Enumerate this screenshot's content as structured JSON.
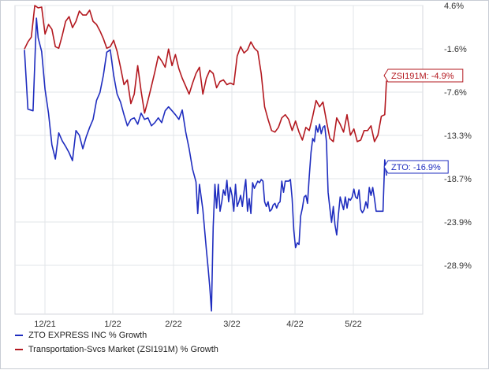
{
  "chart_data": {
    "type": "line",
    "x_ticks": [
      "12/21",
      "1/22",
      "2/22",
      "3/22",
      "4/22",
      "5/22"
    ],
    "y_ticks": [
      "4.6%",
      "-1.6%",
      "-7.6%",
      "-13.3%",
      "-18.7%",
      "-23.9%",
      "-28.9%"
    ],
    "ylim": [
      -34.4,
      4.6
    ],
    "grid": true,
    "legend_position": "bottom-left",
    "series": [
      {
        "name": "ZTO EXPRESS INC % Growth",
        "color": "#1f2dbf",
        "end_label": "ZTO: -16.9%",
        "values": [
          [
            0,
            -1.0
          ],
          [
            2,
            -8.5
          ],
          [
            5,
            -8.7
          ],
          [
            7,
            3.0
          ],
          [
            8,
            0.5
          ],
          [
            10,
            -1.2
          ],
          [
            12,
            -6.0
          ],
          [
            14,
            -9.0
          ],
          [
            16,
            -13.0
          ],
          [
            18,
            -14.8
          ],
          [
            20,
            -11.5
          ],
          [
            22,
            -12.5
          ],
          [
            24,
            -13.2
          ],
          [
            26,
            -14.0
          ],
          [
            28,
            -15.0
          ],
          [
            30,
            -11.2
          ],
          [
            32,
            -11.8
          ],
          [
            34,
            -13.5
          ],
          [
            36,
            -12.0
          ],
          [
            38,
            -10.8
          ],
          [
            40,
            -9.8
          ],
          [
            42,
            -7.4
          ],
          [
            44,
            -6.4
          ],
          [
            46,
            -4.2
          ],
          [
            48,
            -1.3
          ],
          [
            50,
            -1.0
          ],
          [
            52,
            -4.2
          ],
          [
            54,
            -6.6
          ],
          [
            56,
            -7.6
          ],
          [
            58,
            -9.2
          ],
          [
            60,
            -10.6
          ],
          [
            62,
            -9.8
          ],
          [
            64,
            -9.6
          ],
          [
            66,
            -10.4
          ],
          [
            68,
            -9.0
          ],
          [
            70,
            -9.8
          ],
          [
            72,
            -9.6
          ],
          [
            74,
            -10.6
          ],
          [
            76,
            -10.2
          ],
          [
            78,
            -9.6
          ],
          [
            80,
            -10.2
          ],
          [
            82,
            -8.7
          ],
          [
            84,
            -8.2
          ],
          [
            86,
            -8.7
          ],
          [
            88,
            -9.2
          ],
          [
            90,
            -9.8
          ],
          [
            92,
            -8.6
          ],
          [
            94,
            -11.4
          ],
          [
            96,
            -13.5
          ],
          [
            98,
            -16.1
          ],
          [
            100,
            -17.7
          ],
          [
            101,
            -21.7
          ],
          [
            102,
            -18.0
          ],
          [
            104,
            -21.2
          ],
          [
            106,
            -26.2
          ],
          [
            107,
            -28.5
          ],
          [
            108,
            -30.9
          ],
          [
            109,
            -34.0
          ],
          [
            110,
            -23.4
          ],
          [
            111,
            -18.0
          ],
          [
            112,
            -21.0
          ],
          [
            113,
            -18.0
          ],
          [
            114,
            -21.4
          ],
          [
            115,
            -20.2
          ],
          [
            116,
            -18.7
          ],
          [
            117,
            -19.4
          ],
          [
            118,
            -17.5
          ],
          [
            119,
            -20.2
          ],
          [
            120,
            -18.4
          ],
          [
            121,
            -19.4
          ],
          [
            122,
            -21.4
          ],
          [
            123,
            -18.0
          ],
          [
            124,
            -20.8
          ],
          [
            125,
            -20.2
          ],
          [
            126,
            -19.4
          ],
          [
            127,
            -20.8
          ],
          [
            128,
            -18.9
          ],
          [
            129,
            -17.4
          ],
          [
            130,
            -21.4
          ],
          [
            131,
            -19.8
          ],
          [
            132,
            -21.7
          ],
          [
            133,
            -17.8
          ],
          [
            134,
            -18.5
          ],
          [
            136,
            -17.6
          ],
          [
            137,
            -17.8
          ],
          [
            138,
            -17.4
          ],
          [
            139,
            -17.6
          ],
          [
            140,
            -20.2
          ],
          [
            141,
            -20.8
          ],
          [
            142,
            -20.2
          ],
          [
            143,
            -21.4
          ],
          [
            144,
            -21.2
          ],
          [
            145,
            -20.6
          ],
          [
            146,
            -20.4
          ],
          [
            147,
            -21.0
          ],
          [
            148,
            -20.4
          ],
          [
            149,
            -20.2
          ],
          [
            150,
            -17.6
          ],
          [
            151,
            -19.0
          ],
          [
            152,
            -17.6
          ],
          [
            154,
            -17.6
          ],
          [
            155,
            -17.4
          ],
          [
            156,
            -19.8
          ],
          [
            157,
            -23.8
          ],
          [
            158,
            -26.0
          ],
          [
            159,
            -25.4
          ],
          [
            160,
            -25.6
          ],
          [
            161,
            -22.0
          ],
          [
            162,
            -21.0
          ],
          [
            163,
            -19.6
          ],
          [
            164,
            -19.4
          ],
          [
            165,
            -20.4
          ],
          [
            166,
            -17.0
          ],
          [
            167,
            -14.0
          ],
          [
            168,
            -12.2
          ],
          [
            169,
            -12.6
          ],
          [
            170,
            -10.6
          ],
          [
            171,
            -11.4
          ],
          [
            172,
            -10.4
          ],
          [
            173,
            -11.6
          ],
          [
            174,
            -10.8
          ],
          [
            175,
            -10.6
          ],
          [
            176,
            -12.6
          ],
          [
            177,
            -19.0
          ],
          [
            178,
            -21.0
          ],
          [
            179,
            -22.8
          ],
          [
            180,
            -20.8
          ],
          [
            181,
            -23.1
          ],
          [
            182,
            -24.4
          ],
          [
            183,
            -21.8
          ],
          [
            184,
            -19.6
          ],
          [
            185,
            -20.4
          ],
          [
            186,
            -21.2
          ],
          [
            187,
            -19.6
          ],
          [
            188,
            -21.0
          ],
          [
            189,
            -19.8
          ],
          [
            190,
            -20.0
          ],
          [
            191,
            -19.6
          ],
          [
            192,
            -18.6
          ],
          [
            193,
            -19.6
          ],
          [
            194,
            -19.8
          ],
          [
            195,
            -18.7
          ],
          [
            196,
            -21.2
          ],
          [
            197,
            -21.6
          ],
          [
            198,
            -21.2
          ],
          [
            199,
            -20.2
          ],
          [
            200,
            -21.0
          ],
          [
            201,
            -18.4
          ],
          [
            202,
            -19.4
          ],
          [
            203,
            -18.4
          ],
          [
            204,
            -19.8
          ],
          [
            205,
            -21.4
          ],
          [
            206,
            -21.4
          ],
          [
            207,
            -21.4
          ],
          [
            208,
            -21.4
          ],
          [
            209,
            -21.4
          ],
          [
            210,
            -14.9
          ],
          [
            211,
            -16.9
          ]
        ]
      },
      {
        "name": "Transportation-Svcs Market (ZSI191M) % Growth",
        "color": "#b3181f",
        "end_label": "ZSI191M: -4.9%",
        "values": [
          [
            0,
            -0.9
          ],
          [
            2,
            0.0
          ],
          [
            4,
            0.6
          ],
          [
            6,
            4.6
          ],
          [
            8,
            4.3
          ],
          [
            10,
            4.4
          ],
          [
            12,
            1.0
          ],
          [
            14,
            2.2
          ],
          [
            16,
            1.6
          ],
          [
            18,
            -0.6
          ],
          [
            20,
            -0.8
          ],
          [
            22,
            0.8
          ],
          [
            24,
            2.6
          ],
          [
            26,
            3.2
          ],
          [
            28,
            1.8
          ],
          [
            30,
            2.6
          ],
          [
            32,
            3.9
          ],
          [
            34,
            3.4
          ],
          [
            36,
            3.4
          ],
          [
            38,
            4.0
          ],
          [
            40,
            2.6
          ],
          [
            42,
            2.2
          ],
          [
            44,
            1.4
          ],
          [
            46,
            0.4
          ],
          [
            48,
            -0.8
          ],
          [
            50,
            -0.6
          ],
          [
            52,
            0.2
          ],
          [
            54,
            -1.2
          ],
          [
            56,
            -3.2
          ],
          [
            58,
            -5.4
          ],
          [
            60,
            -4.8
          ],
          [
            62,
            -7.8
          ],
          [
            64,
            -6.6
          ],
          [
            66,
            -3.0
          ],
          [
            68,
            -6.2
          ],
          [
            70,
            -9.0
          ],
          [
            72,
            -7.4
          ],
          [
            74,
            -5.6
          ],
          [
            76,
            -3.8
          ],
          [
            78,
            -1.8
          ],
          [
            80,
            -2.4
          ],
          [
            82,
            -3.2
          ],
          [
            84,
            -0.9
          ],
          [
            86,
            -3.0
          ],
          [
            88,
            -1.6
          ],
          [
            90,
            -3.4
          ],
          [
            92,
            -4.6
          ],
          [
            94,
            -5.6
          ],
          [
            96,
            -6.6
          ],
          [
            98,
            -5.2
          ],
          [
            100,
            -4.0
          ],
          [
            102,
            -3.2
          ],
          [
            104,
            -6.6
          ],
          [
            106,
            -4.6
          ],
          [
            108,
            -3.6
          ],
          [
            110,
            -4.0
          ],
          [
            112,
            -5.8
          ],
          [
            114,
            -5.0
          ],
          [
            116,
            -4.8
          ],
          [
            118,
            -5.4
          ],
          [
            120,
            -5.2
          ],
          [
            122,
            -5.4
          ],
          [
            124,
            -1.8
          ],
          [
            126,
            -0.6
          ],
          [
            128,
            -1.4
          ],
          [
            130,
            -1.0
          ],
          [
            132,
            0.0
          ],
          [
            134,
            -0.8
          ],
          [
            136,
            -1.2
          ],
          [
            138,
            -4.0
          ],
          [
            140,
            -8.2
          ],
          [
            142,
            -9.8
          ],
          [
            144,
            -11.2
          ],
          [
            146,
            -11.4
          ],
          [
            148,
            -10.8
          ],
          [
            150,
            -9.6
          ],
          [
            152,
            -9.2
          ],
          [
            154,
            -9.8
          ],
          [
            156,
            -11.2
          ],
          [
            158,
            -10.0
          ],
          [
            160,
            -11.4
          ],
          [
            162,
            -12.4
          ],
          [
            164,
            -10.8
          ],
          [
            166,
            -11.2
          ],
          [
            168,
            -9.4
          ],
          [
            170,
            -7.4
          ],
          [
            172,
            -8.2
          ],
          [
            174,
            -7.6
          ],
          [
            176,
            -10.0
          ],
          [
            178,
            -12.2
          ],
          [
            180,
            -12.6
          ],
          [
            182,
            -9.6
          ],
          [
            184,
            -10.4
          ],
          [
            186,
            -11.4
          ],
          [
            188,
            -9.2
          ],
          [
            190,
            -11.8
          ],
          [
            192,
            -11.0
          ],
          [
            194,
            -12.6
          ],
          [
            196,
            -12.4
          ],
          [
            198,
            -11.2
          ],
          [
            200,
            -11.2
          ],
          [
            202,
            -10.6
          ],
          [
            204,
            -12.6
          ],
          [
            206,
            -11.8
          ],
          [
            208,
            -9.4
          ],
          [
            210,
            -9.2
          ],
          [
            211,
            -4.9
          ]
        ]
      }
    ]
  }
}
